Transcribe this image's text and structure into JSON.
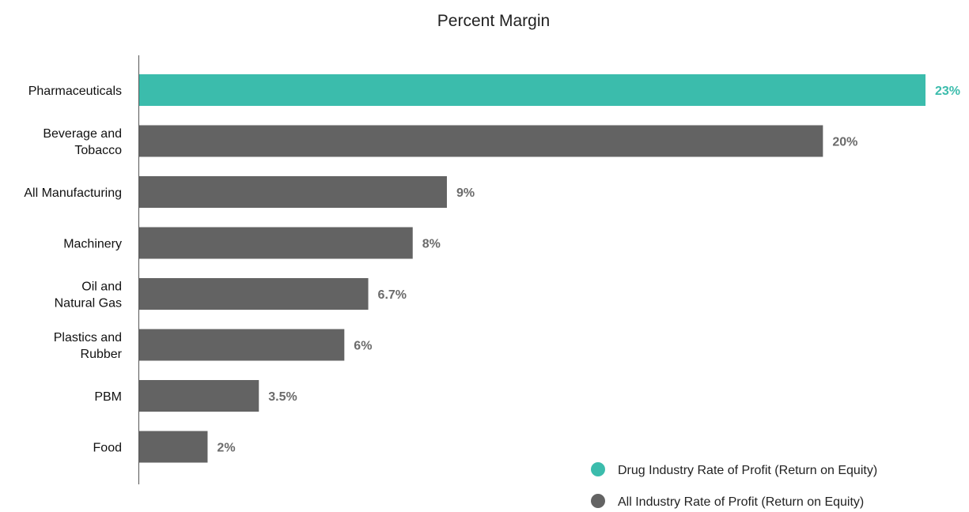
{
  "chart_data": {
    "type": "bar",
    "orientation": "horizontal",
    "title": "Percent Margin",
    "xlabel": "",
    "ylabel": "",
    "grid": false,
    "categories": [
      [
        "Pharmaceuticals"
      ],
      [
        "Beverage and",
        "Tobacco"
      ],
      [
        "All Manufacturing"
      ],
      [
        "Machinery"
      ],
      [
        "Oil and",
        "Natural Gas"
      ],
      [
        "Plastics and",
        "Rubber"
      ],
      [
        "PBM"
      ],
      [
        "Food"
      ]
    ],
    "values": [
      23,
      20,
      9,
      8,
      6.7,
      6,
      3.5,
      2
    ],
    "value_labels": [
      "23%",
      "20%",
      "9%",
      "8%",
      "6.7%",
      "6%",
      "3.5%",
      "2%"
    ],
    "bar_group": [
      "drug",
      "all",
      "all",
      "all",
      "all",
      "all",
      "all",
      "all"
    ],
    "xlim": [
      0,
      23
    ],
    "legend": {
      "placement": "bottom-right",
      "items": [
        {
          "key": "drug",
          "label": "Drug Industry Rate of Profit (Return on Equity)",
          "color": "#3bbcac"
        },
        {
          "key": "all",
          "label": "All Industry Rate of Profit (Return on Equity)",
          "color": "#636363"
        }
      ]
    }
  }
}
